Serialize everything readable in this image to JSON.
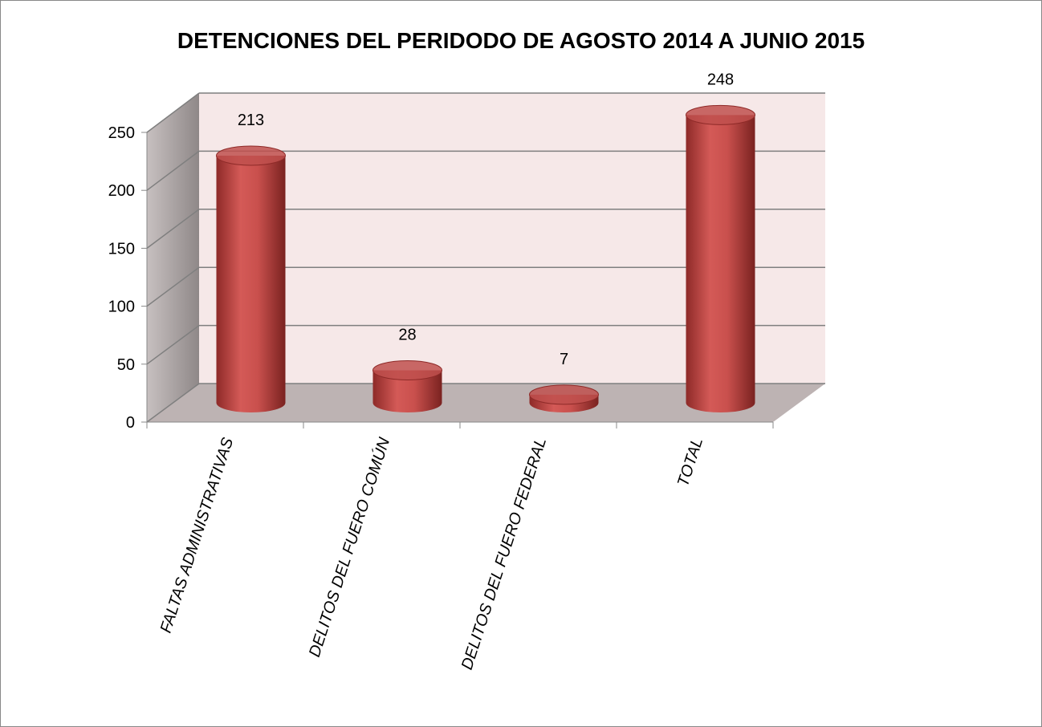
{
  "chart_data": {
    "type": "bar3d",
    "title": "DETENCIONES DEL PERIDODO DE AGOSTO 2014 A JUNIO 2015",
    "categories": [
      "FALTAS ADMINISTRATIVAS",
      "DELITOS DEL FUERO COMÚN",
      "DELITOS DEL FUERO FEDERAL",
      "TOTAL"
    ],
    "values": [
      213,
      28,
      7,
      248
    ],
    "color": "#c0504d",
    "ylim": [
      0,
      250
    ],
    "yticks": [
      0,
      50,
      100,
      150,
      200,
      250
    ],
    "grid": true
  }
}
